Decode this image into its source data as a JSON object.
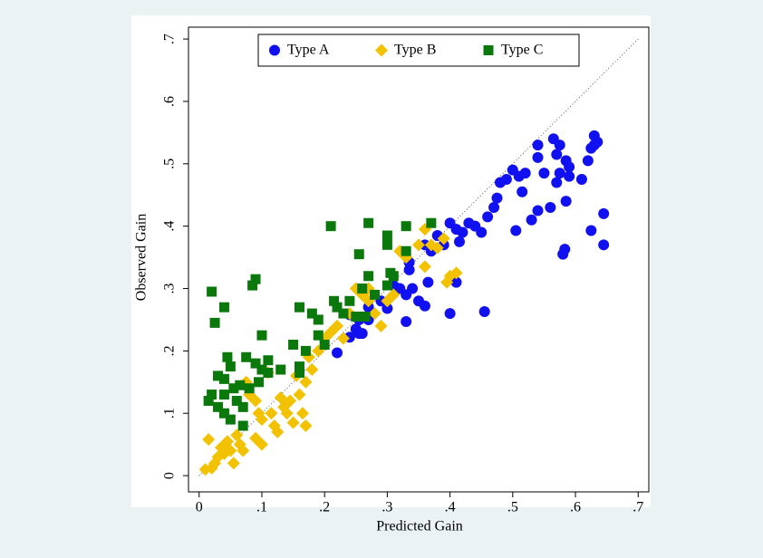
{
  "chart_data": {
    "type": "scatter",
    "xlabel": "Predicted Gain",
    "ylabel": "Observed Gain",
    "xlim": [
      -0.017,
      0.717
    ],
    "ylim": [
      -0.026,
      0.719
    ],
    "xticks": [
      0,
      {
        "value": 0.1,
        "label": ".1"
      },
      {
        "value": 0.2,
        "label": ".2"
      },
      {
        "value": 0.3,
        "label": ".3"
      },
      {
        "value": 0.4,
        "label": ".4"
      },
      {
        "value": 0.5,
        "label": ".5"
      },
      {
        "value": 0.6,
        "label": ".6"
      },
      {
        "value": 0.7,
        "label": ".7"
      }
    ],
    "yticks": [
      0,
      {
        "value": 0.1,
        "label": ".1"
      },
      {
        "value": 0.2,
        "label": ".2"
      },
      {
        "value": 0.3,
        "label": ".3"
      },
      {
        "value": 0.4,
        "label": ".4"
      },
      {
        "value": 0.5,
        "label": ".5"
      },
      {
        "value": 0.6,
        "label": ".6"
      },
      {
        "value": 0.7,
        "label": ".7"
      }
    ],
    "grid": false,
    "legend": "top",
    "series": [
      {
        "name": "Type A",
        "color": "#1010f0",
        "marker": "circle",
        "x": [
          0.22,
          0.24,
          0.24,
          0.25,
          0.255,
          0.26,
          0.255,
          0.27,
          0.27,
          0.29,
          0.3,
          0.31,
          0.32,
          0.33,
          0.33,
          0.335,
          0.335,
          0.34,
          0.35,
          0.36,
          0.36,
          0.365,
          0.37,
          0.38,
          0.39,
          0.4,
          0.4,
          0.41,
          0.41,
          0.415,
          0.42,
          0.43,
          0.44,
          0.45,
          0.455,
          0.46,
          0.47,
          0.475,
          0.48,
          0.49,
          0.5,
          0.505,
          0.51,
          0.515,
          0.52,
          0.53,
          0.54,
          0.54,
          0.54,
          0.55,
          0.56,
          0.565,
          0.57,
          0.57,
          0.575,
          0.575,
          0.58,
          0.583,
          0.585,
          0.585,
          0.59,
          0.59,
          0.61,
          0.62,
          0.625,
          0.625,
          0.63,
          0.63,
          0.635,
          0.645,
          0.645
        ],
        "values": [
          0.197,
          0.222,
          0.258,
          0.235,
          0.228,
          0.228,
          0.25,
          0.25,
          0.27,
          0.28,
          0.268,
          0.305,
          0.3,
          0.247,
          0.29,
          0.33,
          0.342,
          0.3,
          0.28,
          0.272,
          0.37,
          0.31,
          0.36,
          0.385,
          0.37,
          0.26,
          0.405,
          0.31,
          0.395,
          0.375,
          0.39,
          0.405,
          0.4,
          0.39,
          0.263,
          0.415,
          0.43,
          0.445,
          0.47,
          0.475,
          0.49,
          0.393,
          0.48,
          0.455,
          0.485,
          0.41,
          0.425,
          0.51,
          0.53,
          0.485,
          0.43,
          0.54,
          0.515,
          0.47,
          0.485,
          0.53,
          0.355,
          0.363,
          0.44,
          0.505,
          0.48,
          0.495,
          0.475,
          0.505,
          0.393,
          0.525,
          0.53,
          0.545,
          0.535,
          0.42,
          0.37
        ]
      },
      {
        "name": "Type B",
        "color": "#f2c200",
        "marker": "diamond",
        "x": [
          0.01,
          0.015,
          0.02,
          0.025,
          0.03,
          0.035,
          0.04,
          0.045,
          0.05,
          0.055,
          0.06,
          0.065,
          0.07,
          0.075,
          0.08,
          0.09,
          0.09,
          0.095,
          0.1,
          0.1,
          0.11,
          0.115,
          0.12,
          0.125,
          0.13,
          0.135,
          0.14,
          0.145,
          0.15,
          0.155,
          0.16,
          0.165,
          0.17,
          0.17,
          0.175,
          0.18,
          0.19,
          0.2,
          0.21,
          0.22,
          0.23,
          0.24,
          0.25,
          0.26,
          0.27,
          0.27,
          0.28,
          0.29,
          0.3,
          0.31,
          0.32,
          0.33,
          0.35,
          0.36,
          0.36,
          0.37,
          0.38,
          0.39,
          0.4,
          0.41,
          0.395
        ],
        "values": [
          0.01,
          0.058,
          0.012,
          0.02,
          0.03,
          0.045,
          0.035,
          0.055,
          0.04,
          0.02,
          0.065,
          0.05,
          0.04,
          0.15,
          0.13,
          0.06,
          0.12,
          0.1,
          0.05,
          0.09,
          0.165,
          0.1,
          0.08,
          0.07,
          0.125,
          0.11,
          0.1,
          0.12,
          0.085,
          0.16,
          0.13,
          0.1,
          0.08,
          0.15,
          0.19,
          0.17,
          0.2,
          0.22,
          0.23,
          0.24,
          0.22,
          0.26,
          0.3,
          0.29,
          0.28,
          0.3,
          0.26,
          0.24,
          0.28,
          0.29,
          0.36,
          0.35,
          0.37,
          0.395,
          0.335,
          0.37,
          0.365,
          0.38,
          0.32,
          0.325,
          0.31
        ]
      },
      {
        "name": "Type C",
        "color": "#0a780a",
        "marker": "square",
        "x": [
          0.015,
          0.02,
          0.02,
          0.025,
          0.03,
          0.03,
          0.04,
          0.04,
          0.04,
          0.04,
          0.045,
          0.05,
          0.05,
          0.055,
          0.06,
          0.065,
          0.07,
          0.07,
          0.075,
          0.08,
          0.085,
          0.09,
          0.09,
          0.095,
          0.1,
          0.1,
          0.11,
          0.11,
          0.13,
          0.15,
          0.16,
          0.16,
          0.16,
          0.17,
          0.18,
          0.19,
          0.19,
          0.2,
          0.21,
          0.215,
          0.22,
          0.23,
          0.24,
          0.25,
          0.255,
          0.26,
          0.265,
          0.27,
          0.27,
          0.28,
          0.3,
          0.3,
          0.3,
          0.305,
          0.31,
          0.33,
          0.33,
          0.37
        ],
        "values": [
          0.12,
          0.13,
          0.295,
          0.245,
          0.16,
          0.11,
          0.155,
          0.13,
          0.1,
          0.27,
          0.19,
          0.175,
          0.09,
          0.14,
          0.12,
          0.145,
          0.08,
          0.11,
          0.19,
          0.14,
          0.305,
          0.315,
          0.18,
          0.15,
          0.225,
          0.17,
          0.165,
          0.185,
          0.17,
          0.21,
          0.27,
          0.175,
          0.165,
          0.2,
          0.26,
          0.25,
          0.225,
          0.21,
          0.4,
          0.28,
          0.27,
          0.26,
          0.28,
          0.255,
          0.355,
          0.3,
          0.255,
          0.405,
          0.32,
          0.29,
          0.385,
          0.37,
          0.305,
          0.325,
          0.32,
          0.4,
          0.36,
          0.405
        ]
      }
    ]
  }
}
